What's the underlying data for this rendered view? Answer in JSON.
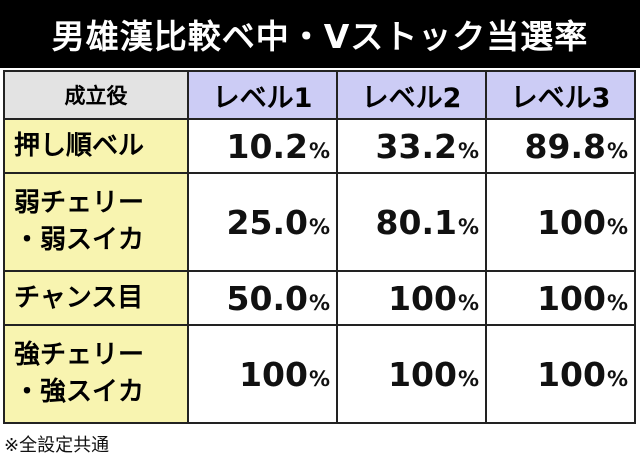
{
  "title": "男雄漢比較ベ中・Vストック当選率",
  "table": {
    "corner_label": "成立役",
    "levels": [
      "レベル1",
      "レベル2",
      "レベル3"
    ],
    "rows": [
      {
        "label_lines": [
          "押し順ベル"
        ],
        "values": [
          "10.2",
          "33.2",
          "89.8"
        ]
      },
      {
        "label_lines": [
          "弱チェリー",
          "・弱スイカ"
        ],
        "values": [
          "25.0",
          "80.1",
          "100"
        ]
      },
      {
        "label_lines": [
          "チャンス目"
        ],
        "values": [
          "50.0",
          "100",
          "100"
        ]
      },
      {
        "label_lines": [
          "強チェリー",
          "・強スイカ"
        ],
        "values": [
          "100",
          "100",
          "100"
        ]
      }
    ],
    "percent_sign": "%"
  },
  "note": "※全設定共通",
  "colors": {
    "title_bg": "#000000",
    "header_level_bg": "#ccccf5",
    "header_corner_bg": "#e3e3e3",
    "row_label_bg": "#f8f4b0"
  }
}
